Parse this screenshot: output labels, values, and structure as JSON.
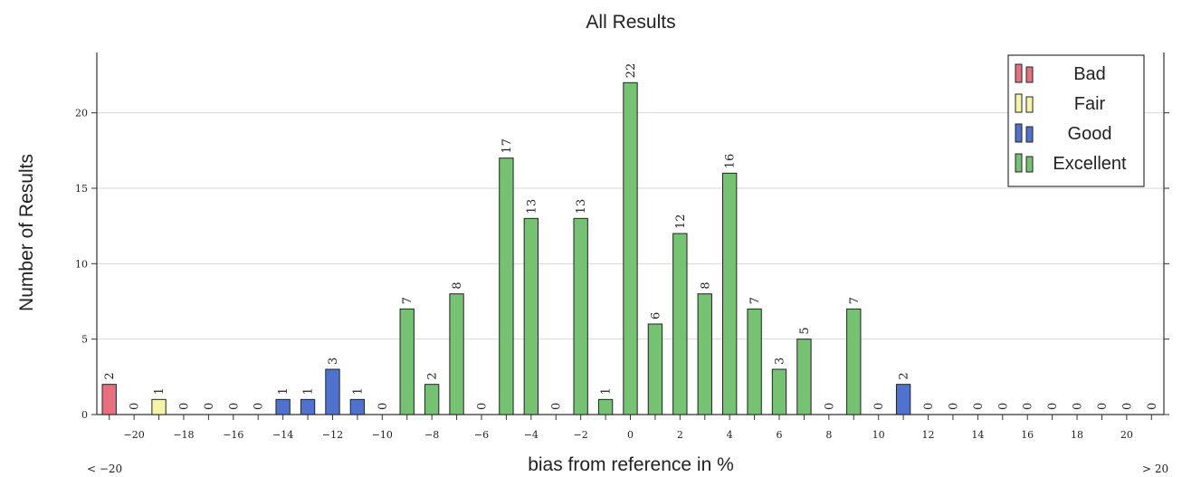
{
  "chart_data": {
    "type": "bar",
    "title": "All Results",
    "xlabel": "bias from reference in %",
    "ylabel": "Number of Results",
    "ylim": [
      0,
      24
    ],
    "y_ticks": [
      0,
      5,
      10,
      15,
      20
    ],
    "x_ticks": [
      -20,
      -18,
      -16,
      -14,
      -12,
      -10,
      -8,
      -6,
      -4,
      -2,
      0,
      2,
      4,
      6,
      8,
      10,
      12,
      14,
      16,
      18,
      20
    ],
    "left_overflow_label": "< −20",
    "right_overflow_label": "> 20",
    "grid": "horizontal",
    "legend_position": "top-right",
    "legend": [
      {
        "label": "Bad",
        "color": "#e8707e"
      },
      {
        "label": "Fair",
        "color": "#f5f5a8"
      },
      {
        "label": "Good",
        "color": "#4f72cf"
      },
      {
        "label": "Excellent",
        "color": "#74c272"
      }
    ],
    "bars": [
      {
        "x": -21,
        "value": 2,
        "category": "Bad"
      },
      {
        "x": -20,
        "value": 0,
        "category": "Bad"
      },
      {
        "x": -19,
        "value": 1,
        "category": "Fair"
      },
      {
        "x": -18,
        "value": 0,
        "category": "Fair"
      },
      {
        "x": -17,
        "value": 0,
        "category": "Fair"
      },
      {
        "x": -16,
        "value": 0,
        "category": "Fair"
      },
      {
        "x": -15,
        "value": 0,
        "category": "Fair"
      },
      {
        "x": -14,
        "value": 1,
        "category": "Good"
      },
      {
        "x": -13,
        "value": 1,
        "category": "Good"
      },
      {
        "x": -12,
        "value": 3,
        "category": "Good"
      },
      {
        "x": -11,
        "value": 1,
        "category": "Good"
      },
      {
        "x": -10,
        "value": 0,
        "category": "Good"
      },
      {
        "x": -9,
        "value": 7,
        "category": "Excellent"
      },
      {
        "x": -8,
        "value": 2,
        "category": "Excellent"
      },
      {
        "x": -7,
        "value": 8,
        "category": "Excellent"
      },
      {
        "x": -6,
        "value": 0,
        "category": "Excellent"
      },
      {
        "x": -5,
        "value": 17,
        "category": "Excellent"
      },
      {
        "x": -4,
        "value": 13,
        "category": "Excellent"
      },
      {
        "x": -3,
        "value": 0,
        "category": "Excellent"
      },
      {
        "x": -2,
        "value": 13,
        "category": "Excellent"
      },
      {
        "x": -1,
        "value": 1,
        "category": "Excellent"
      },
      {
        "x": 0,
        "value": 22,
        "category": "Excellent"
      },
      {
        "x": 1,
        "value": 6,
        "category": "Excellent"
      },
      {
        "x": 2,
        "value": 12,
        "category": "Excellent"
      },
      {
        "x": 3,
        "value": 8,
        "category": "Excellent"
      },
      {
        "x": 4,
        "value": 16,
        "category": "Excellent"
      },
      {
        "x": 5,
        "value": 7,
        "category": "Excellent"
      },
      {
        "x": 6,
        "value": 3,
        "category": "Excellent"
      },
      {
        "x": 7,
        "value": 5,
        "category": "Excellent"
      },
      {
        "x": 8,
        "value": 0,
        "category": "Excellent"
      },
      {
        "x": 9,
        "value": 7,
        "category": "Excellent"
      },
      {
        "x": 10,
        "value": 0,
        "category": "Good"
      },
      {
        "x": 11,
        "value": 2,
        "category": "Good"
      },
      {
        "x": 12,
        "value": 0,
        "category": "Good"
      },
      {
        "x": 13,
        "value": 0,
        "category": "Good"
      },
      {
        "x": 14,
        "value": 0,
        "category": "Good"
      },
      {
        "x": 15,
        "value": 0,
        "category": "Fair"
      },
      {
        "x": 16,
        "value": 0,
        "category": "Fair"
      },
      {
        "x": 17,
        "value": 0,
        "category": "Fair"
      },
      {
        "x": 18,
        "value": 0,
        "category": "Fair"
      },
      {
        "x": 19,
        "value": 0,
        "category": "Fair"
      },
      {
        "x": 20,
        "value": 0,
        "category": "Bad"
      },
      {
        "x": 21,
        "value": 0,
        "category": "Bad"
      }
    ]
  }
}
